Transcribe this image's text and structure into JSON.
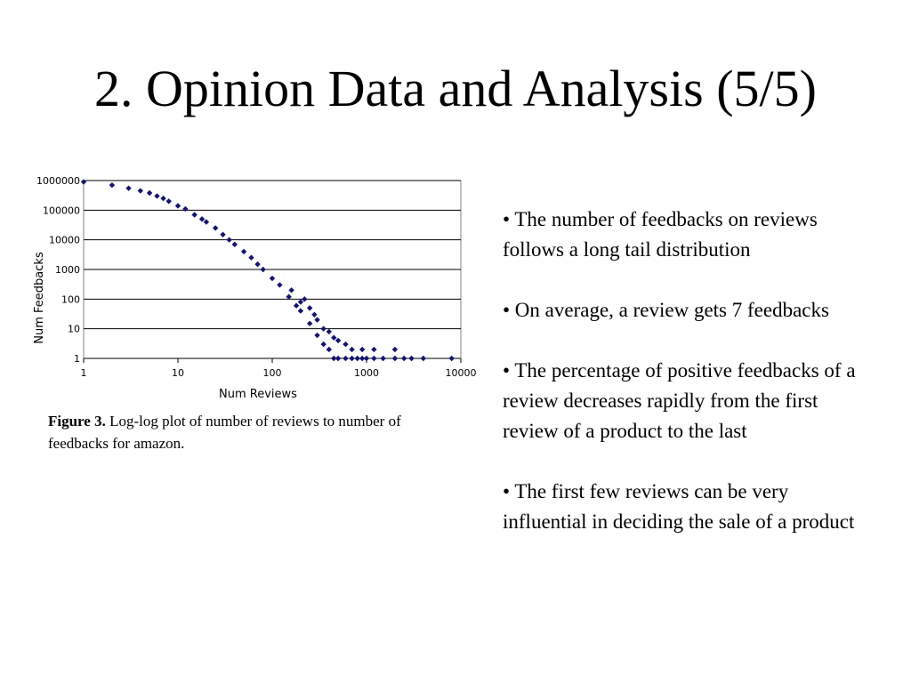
{
  "slide": {
    "title": "2. Opinion Data and Analysis (5/5)"
  },
  "caption": {
    "label": "Figure 3.",
    "text": "Log-log plot of number of reviews to number of feedbacks for amazon."
  },
  "bullets": [
    "•  The number of feedbacks on reviews follows a long tail distribution",
    "•  On average, a review gets 7 feedbacks",
    "• The percentage of positive feedbacks of a review decreases rapidly from the first review of a product to the last",
    "• The first few reviews can be very influential in deciding the sale of a product"
  ],
  "colors": {
    "marker": "#14146e",
    "gridline": "#000000",
    "plot_border": "#808080"
  },
  "chart_data": {
    "type": "scatter",
    "x_scale": "log",
    "y_scale": "log",
    "xlabel": "Num Reviews",
    "ylabel": "Num Feedbacks",
    "xlim": [
      1,
      10000
    ],
    "ylim": [
      1,
      1000000
    ],
    "x_ticks": [
      "1",
      "10",
      "100",
      "1000",
      "10000"
    ],
    "y_ticks": [
      "1",
      "10",
      "100",
      "1000",
      "10000",
      "100000",
      "1000000"
    ],
    "grid": "horizontal",
    "marker": "diamond",
    "series": [
      {
        "values": [
          [
            1,
            900000
          ],
          [
            2,
            700000
          ],
          [
            3,
            550000
          ],
          [
            4,
            450000
          ],
          [
            5,
            380000
          ],
          [
            6,
            300000
          ],
          [
            7,
            250000
          ],
          [
            8,
            200000
          ],
          [
            10,
            140000
          ],
          [
            12,
            110000
          ],
          [
            15,
            70000
          ],
          [
            18,
            50000
          ],
          [
            20,
            40000
          ],
          [
            25,
            25000
          ],
          [
            30,
            15000
          ],
          [
            35,
            10000
          ],
          [
            40,
            7000
          ],
          [
            50,
            4000
          ],
          [
            60,
            2500
          ],
          [
            70,
            1500
          ],
          [
            80,
            1000
          ],
          [
            100,
            500
          ],
          [
            120,
            300
          ],
          [
            150,
            120
          ],
          [
            180,
            60
          ],
          [
            200,
            40
          ],
          [
            250,
            15
          ],
          [
            300,
            6
          ],
          [
            350,
            3
          ],
          [
            400,
            2
          ],
          [
            450,
            1
          ],
          [
            500,
            1
          ],
          [
            600,
            1
          ],
          [
            700,
            1
          ],
          [
            800,
            1
          ],
          [
            900,
            1
          ],
          [
            1000,
            1
          ],
          [
            1200,
            1
          ],
          [
            1500,
            1
          ],
          [
            2000,
            1
          ],
          [
            2500,
            1
          ],
          [
            3000,
            1
          ],
          [
            4000,
            1
          ],
          [
            8000,
            1
          ],
          [
            300,
            20
          ],
          [
            350,
            10
          ],
          [
            400,
            8
          ],
          [
            450,
            5
          ],
          [
            500,
            4
          ],
          [
            600,
            3
          ],
          [
            700,
            2
          ],
          [
            900,
            2
          ],
          [
            1200,
            2
          ],
          [
            2000,
            2
          ],
          [
            250,
            50
          ],
          [
            280,
            30
          ],
          [
            200,
            80
          ],
          [
            220,
            100
          ],
          [
            160,
            200
          ]
        ]
      }
    ]
  }
}
